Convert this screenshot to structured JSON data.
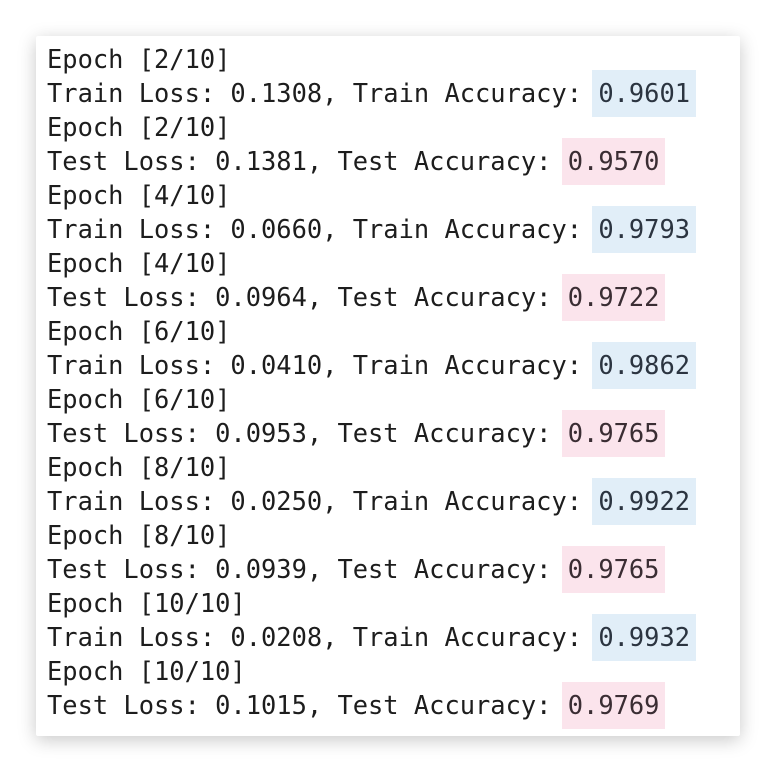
{
  "colors": {
    "train_highlight": "#e1eef8",
    "test_highlight": "#fbe4ec"
  },
  "lines": [
    {
      "epoch": "Epoch [2/10]",
      "kind": "train",
      "text": "Train Loss: 0.1308, Train Accuracy: ",
      "value": "0.9601"
    },
    {
      "epoch": "Epoch [2/10]",
      "kind": "test",
      "text": "Test Loss: 0.1381, Test Accuracy: ",
      "value": "0.9570"
    },
    {
      "epoch": "Epoch [4/10]",
      "kind": "train",
      "text": "Train Loss: 0.0660, Train Accuracy: ",
      "value": "0.9793"
    },
    {
      "epoch": "Epoch [4/10]",
      "kind": "test",
      "text": "Test Loss: 0.0964, Test Accuracy: ",
      "value": "0.9722"
    },
    {
      "epoch": "Epoch [6/10]",
      "kind": "train",
      "text": "Train Loss: 0.0410, Train Accuracy: ",
      "value": "0.9862"
    },
    {
      "epoch": "Epoch [6/10]",
      "kind": "test",
      "text": "Test Loss: 0.0953, Test Accuracy: ",
      "value": "0.9765"
    },
    {
      "epoch": "Epoch [8/10]",
      "kind": "train",
      "text": "Train Loss: 0.0250, Train Accuracy: ",
      "value": "0.9922"
    },
    {
      "epoch": "Epoch [8/10]",
      "kind": "test",
      "text": "Test Loss: 0.0939, Test Accuracy: ",
      "value": "0.9765"
    },
    {
      "epoch": "Epoch [10/10]",
      "kind": "train",
      "text": "Train Loss: 0.0208, Train Accuracy: ",
      "value": "0.9932"
    },
    {
      "epoch": "Epoch [10/10]",
      "kind": "test",
      "text": "Test Loss: 0.1015, Test Accuracy: ",
      "value": "0.9769"
    }
  ]
}
